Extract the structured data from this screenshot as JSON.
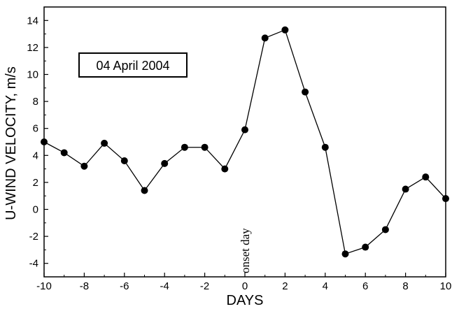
{
  "chart_data": {
    "type": "line",
    "title": "",
    "xlabel": "DAYS",
    "ylabel": "U-WIND VELOCITY,  m/s",
    "xlim": [
      -10,
      10
    ],
    "ylim": [
      -5,
      15
    ],
    "xticks": [
      -10,
      -8,
      -6,
      -4,
      -2,
      0,
      2,
      4,
      6,
      8,
      10
    ],
    "yticks": [
      -4,
      -2,
      0,
      2,
      4,
      6,
      8,
      10,
      12,
      14
    ],
    "grid": false,
    "series": [
      {
        "x": [
          -10,
          -9,
          -8,
          -7,
          -6,
          -5,
          -4,
          -3,
          -2,
          -1,
          0,
          1,
          2,
          3,
          4,
          5,
          6,
          7,
          8,
          9,
          10
        ],
        "values": [
          5.0,
          4.2,
          3.2,
          4.9,
          3.6,
          1.4,
          3.4,
          4.6,
          4.6,
          3.0,
          5.9,
          12.7,
          13.3,
          8.7,
          4.6,
          -3.3,
          -2.8,
          -1.5,
          1.5,
          2.4,
          0.8
        ]
      }
    ],
    "annotations": {
      "date_box": "04 April 2004",
      "onset_label": "onset day",
      "onset_x": 0
    }
  },
  "style": {
    "line_color": "#000000",
    "marker_color": "#000000",
    "background": "#ffffff"
  }
}
